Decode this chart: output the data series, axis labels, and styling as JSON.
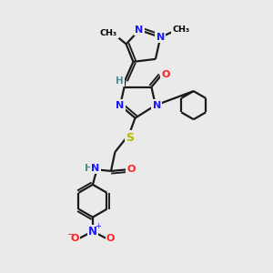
{
  "background_color": "#eaeaea",
  "figure_size": [
    3.0,
    3.0
  ],
  "dpi": 100,
  "colors": {
    "N": "#1a1aff",
    "O": "#ff2020",
    "S": "#b8b800",
    "C": "#000000",
    "H": "#4a9090",
    "bond": "#1a1a1a"
  },
  "bond_lw": 1.6,
  "xlim": [
    0,
    10
  ],
  "ylim": [
    0,
    10
  ]
}
